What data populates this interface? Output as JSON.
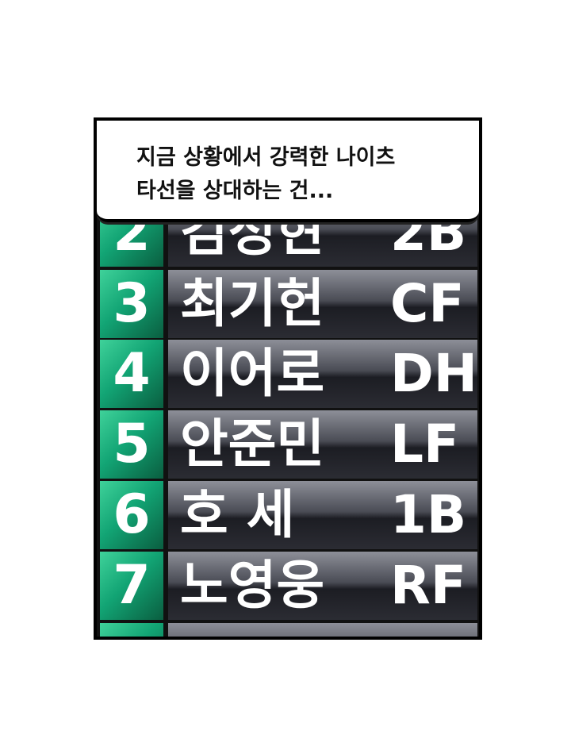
{
  "dialogue": {
    "lines": [
      "지금 상황에서 강력한 나이츠",
      "타선을 상대하는 건..."
    ]
  },
  "lineup": {
    "rows": [
      {
        "number": "2",
        "name": "김성현",
        "position": "2B"
      },
      {
        "number": "3",
        "name": "최기헌",
        "position": "CF"
      },
      {
        "number": "4",
        "name": "이어로",
        "position": "DH"
      },
      {
        "number": "5",
        "name": "안준민",
        "position": "LF"
      },
      {
        "number": "6",
        "name": "호 세",
        "position": "1B"
      },
      {
        "number": "7",
        "name": "노영웅",
        "position": "RF"
      }
    ]
  }
}
